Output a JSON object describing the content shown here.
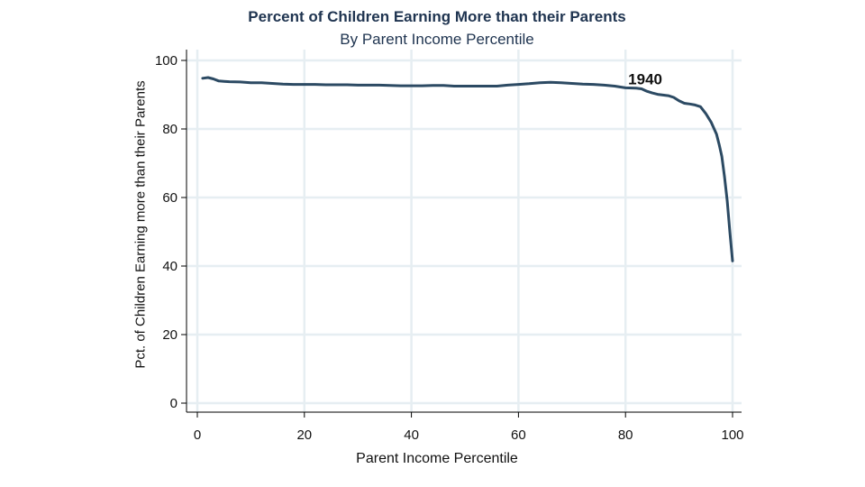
{
  "chart_data": {
    "type": "line",
    "title": "Percent of Children Earning More than their Parents",
    "subtitle": "By Parent Income Percentile",
    "xlabel": "Parent Income Percentile",
    "ylabel": "Pct. of Children Earning more than their Parents",
    "xlim": [
      0,
      100
    ],
    "ylim": [
      0,
      100
    ],
    "xticks": [
      0,
      20,
      40,
      60,
      80,
      100
    ],
    "yticks": [
      0,
      20,
      40,
      60,
      80,
      100
    ],
    "grid": true,
    "line_color": "#2c4a63",
    "grid_color": "#e6eef2",
    "annotation": {
      "text": "1940",
      "x": 80.5,
      "y": 93
    },
    "series": [
      {
        "x": [
          1,
          2,
          3,
          4,
          5,
          6,
          8,
          10,
          12,
          14,
          16,
          18,
          20,
          22,
          24,
          26,
          28,
          30,
          32,
          34,
          36,
          38,
          40,
          42,
          44,
          46,
          48,
          50,
          52,
          54,
          56,
          58,
          60,
          62,
          64,
          66,
          68,
          70,
          72,
          74,
          76,
          78,
          80,
          82,
          83,
          84,
          85,
          86,
          87,
          88,
          89,
          90,
          91,
          92,
          93,
          94,
          95,
          96,
          97,
          97.5,
          98,
          98.5,
          99,
          99.5,
          100
        ],
        "values": [
          94.8,
          95.0,
          94.6,
          94.0,
          93.9,
          93.8,
          93.7,
          93.5,
          93.5,
          93.3,
          93.1,
          93.0,
          93.0,
          93.0,
          92.9,
          92.9,
          92.9,
          92.8,
          92.8,
          92.8,
          92.7,
          92.6,
          92.6,
          92.6,
          92.7,
          92.7,
          92.5,
          92.5,
          92.5,
          92.5,
          92.5,
          92.8,
          93.0,
          93.2,
          93.5,
          93.6,
          93.5,
          93.3,
          93.1,
          93.0,
          92.8,
          92.5,
          92.0,
          91.9,
          91.7,
          91.0,
          90.5,
          90.1,
          89.9,
          89.7,
          89.2,
          88.2,
          87.5,
          87.3,
          87.0,
          86.5,
          84.5,
          82.0,
          78.5,
          75.5,
          72.0,
          66.0,
          59.0,
          50.0,
          41.5
        ]
      }
    ]
  }
}
